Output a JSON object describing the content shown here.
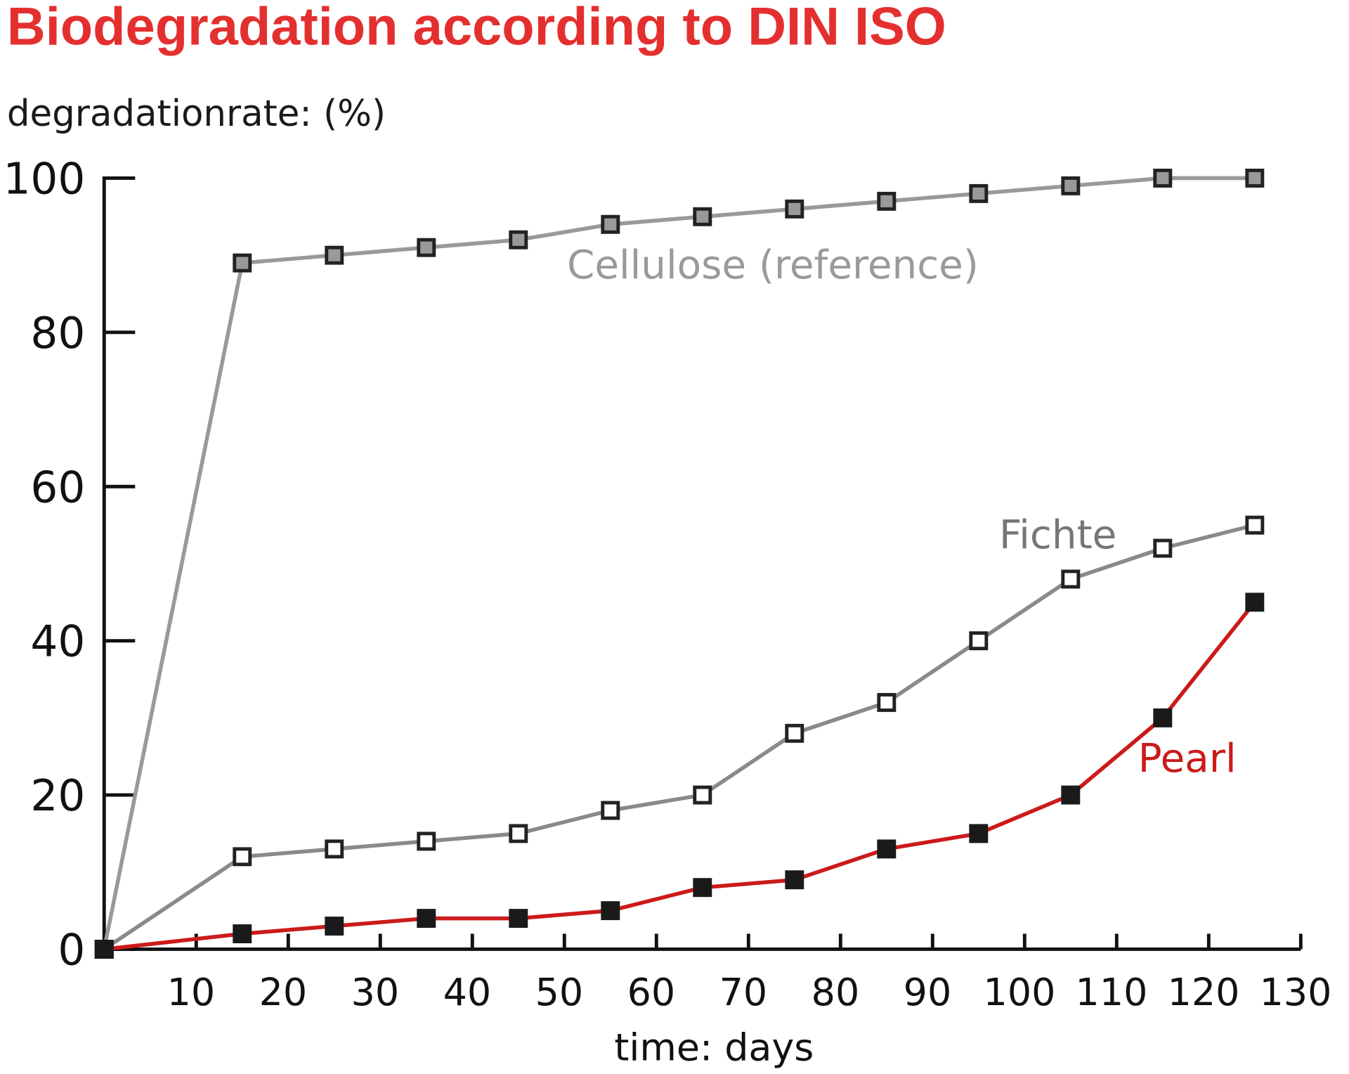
{
  "chart_data": {
    "type": "line",
    "title": "Biodegradation according to DIN ISO",
    "ylabel": "degradationrate: (%)",
    "xlabel": "time: days",
    "xlim": [
      0,
      130
    ],
    "ylim": [
      0,
      100
    ],
    "xticks": [
      10,
      20,
      30,
      40,
      50,
      60,
      70,
      80,
      90,
      100,
      110,
      120,
      130
    ],
    "yticks": [
      0,
      20,
      40,
      60,
      80,
      100
    ],
    "grid": false,
    "x": [
      0,
      15,
      25,
      35,
      45,
      55,
      65,
      75,
      85,
      95,
      105,
      115,
      125
    ],
    "series": [
      {
        "name": "Cellulose (reference)",
        "color": "#999999",
        "label_color": "#9a9a9a",
        "marker": "gray",
        "label_at": [
          95,
          87
        ],
        "values": [
          0,
          89,
          90,
          91,
          92,
          94,
          95,
          96,
          97,
          98,
          99,
          100,
          100
        ]
      },
      {
        "name": "Fichte",
        "color": "#8a8a8a",
        "label_color": "#777777",
        "marker": "white",
        "label_at": [
          110,
          52
        ],
        "values": [
          0,
          12,
          13,
          14,
          15,
          18,
          20,
          28,
          32,
          40,
          48,
          52,
          55
        ]
      },
      {
        "name": "Pearl",
        "color": "#cc1a1a",
        "label_color": "#cc1a1a",
        "marker": "black",
        "label_at": [
          123,
          23
        ],
        "values": [
          0,
          2,
          3,
          4,
          4,
          5,
          8,
          9,
          13,
          15,
          20,
          30,
          45
        ]
      }
    ]
  }
}
